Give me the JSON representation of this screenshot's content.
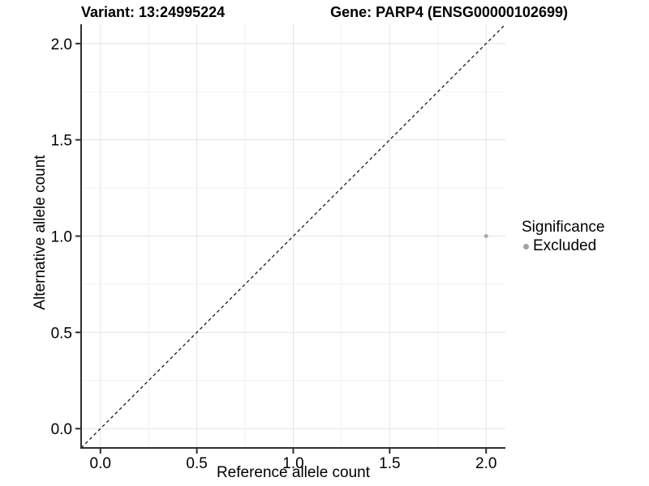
{
  "chart_data": {
    "type": "scatter",
    "title_left": "Variant: 13:24995224",
    "title_right": "Gene: PARP4 (ENSG00000102699)",
    "xlabel": "Reference allele count",
    "ylabel": "Alternative allele count",
    "xlim": [
      -0.1,
      2.1
    ],
    "ylim": [
      -0.1,
      2.1
    ],
    "x_ticks": {
      "values": [
        0,
        0.5,
        1,
        1.5,
        2
      ],
      "labels": [
        "0.0",
        "0.5",
        "1.0",
        "1.5",
        "2.0"
      ]
    },
    "y_ticks": {
      "values": [
        0,
        0.5,
        1,
        1.5,
        2
      ],
      "labels": [
        "0.0",
        "0.5",
        "1.0",
        "1.5",
        "2.0"
      ]
    },
    "minor_ticks": [
      0.25,
      0.75,
      1.25,
      1.75
    ],
    "grid": "major+minor",
    "reference_line": {
      "slope": 1,
      "intercept": 0,
      "style": "dashed",
      "color": "#1a1a1a"
    },
    "series": [
      {
        "name": "Excluded",
        "color": "#a8a8a8",
        "points": [
          {
            "x": 2,
            "y": 1
          }
        ]
      }
    ],
    "legend": {
      "title": "Significance",
      "position": "right",
      "items": [
        {
          "label": "Excluded",
          "color": "#a3a3a3"
        }
      ]
    },
    "colors": {
      "background": "#ffffff",
      "grid_major": "#e4e4e4",
      "grid_minor": "#f1f1f1",
      "axis": "#2f2f2f",
      "text": "#000000"
    }
  }
}
